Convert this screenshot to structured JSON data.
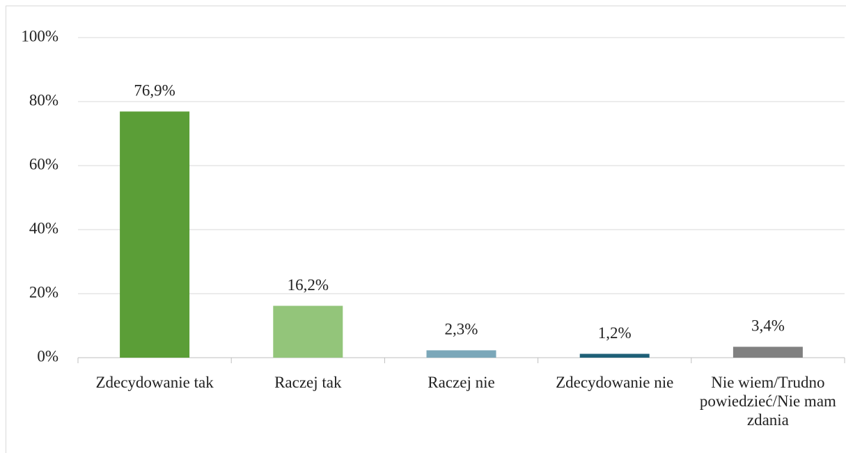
{
  "chart_data": {
    "type": "bar",
    "categories": [
      "Zdecydowanie tak",
      "Raczej tak",
      "Raczej nie",
      "Zdecydowanie nie",
      "Nie wiem/Trudno powiedzieć/Nie mam zdania"
    ],
    "values": [
      76.9,
      16.2,
      2.3,
      1.2,
      3.4
    ],
    "value_labels": [
      "76,9%",
      "16,2%",
      "2,3%",
      "1,2%",
      "3,4%"
    ],
    "colors": [
      "#5b9e37",
      "#93c57a",
      "#7ba7b9",
      "#1f6077",
      "#808080"
    ],
    "ylim": [
      0,
      100
    ],
    "yticks": [
      {
        "value": 0,
        "label": "0%"
      },
      {
        "value": 20,
        "label": "20%"
      },
      {
        "value": 40,
        "label": "40%"
      },
      {
        "value": 60,
        "label": "60%"
      },
      {
        "value": 80,
        "label": "80%"
      },
      {
        "value": 100,
        "label": "100%"
      }
    ],
    "grid": true
  }
}
